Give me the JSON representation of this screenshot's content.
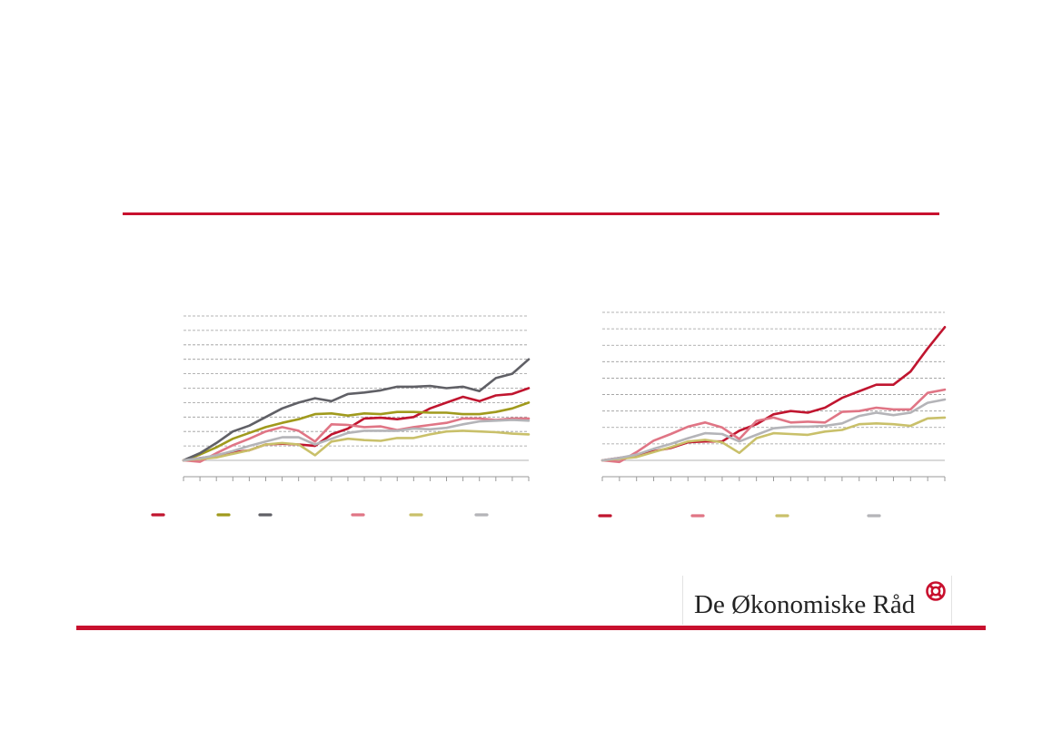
{
  "colors": {
    "accent": "#c8102e",
    "grid": "#9a9a9a",
    "axis": "#9a9a9a"
  },
  "logo": {
    "text": "De Økonomiske Råd",
    "icon": "cross-circle-icon"
  },
  "chart_data": [
    {
      "type": "line",
      "ylim": [
        0,
        10
      ],
      "grid": true,
      "gridlines": 10,
      "x_ticks": 22,
      "legend": "bottom",
      "x": [
        0,
        1,
        2,
        3,
        4,
        5,
        6,
        7,
        8,
        9,
        10,
        11,
        12,
        13,
        14,
        15,
        16,
        17,
        18,
        19,
        20,
        21
      ],
      "series": [
        {
          "color": "#c0152f",
          "values": [
            0.0,
            0.15,
            0.3,
            0.55,
            0.7,
            1.1,
            1.15,
            1.1,
            1.0,
            1.8,
            2.2,
            2.9,
            2.95,
            2.85,
            3.0,
            3.6,
            4.0,
            4.4,
            4.1,
            4.5,
            4.6,
            5.0
          ]
        },
        {
          "color": "#a09a1d",
          "values": [
            0.0,
            0.4,
            0.9,
            1.5,
            1.9,
            2.3,
            2.6,
            2.85,
            3.2,
            3.25,
            3.1,
            3.25,
            3.2,
            3.35,
            3.35,
            3.3,
            3.3,
            3.2,
            3.2,
            3.35,
            3.6,
            4.0
          ]
        },
        {
          "color": "#606066",
          "values": [
            0.0,
            0.5,
            1.2,
            2.0,
            2.4,
            3.0,
            3.6,
            4.0,
            4.3,
            4.1,
            4.6,
            4.7,
            4.85,
            5.1,
            5.1,
            5.15,
            5.0,
            5.1,
            4.8,
            5.7,
            6.0,
            7.0
          ]
        },
        {
          "color": "#e07585",
          "values": [
            0.0,
            -0.1,
            0.5,
            1.05,
            1.5,
            2.0,
            2.3,
            2.05,
            1.3,
            2.5,
            2.45,
            2.3,
            2.35,
            2.1,
            2.3,
            2.45,
            2.6,
            2.9,
            2.9,
            2.8,
            2.9,
            2.9
          ]
        },
        {
          "color": "#c9c06a",
          "values": [
            0.0,
            0.1,
            0.2,
            0.45,
            0.7,
            1.1,
            1.2,
            1.1,
            0.35,
            1.3,
            1.5,
            1.4,
            1.35,
            1.55,
            1.55,
            1.8,
            2.0,
            2.05,
            2.0,
            1.95,
            1.85,
            1.8
          ]
        },
        {
          "color": "#b4b4b8",
          "values": [
            0.0,
            0.15,
            0.35,
            0.65,
            1.0,
            1.3,
            1.6,
            1.6,
            1.1,
            1.5,
            1.9,
            2.05,
            2.05,
            2.05,
            2.2,
            2.15,
            2.25,
            2.5,
            2.7,
            2.75,
            2.8,
            2.75
          ]
        }
      ]
    },
    {
      "type": "line",
      "ylim": [
        0,
        9
      ],
      "grid": true,
      "gridlines": 9,
      "x_ticks": 21,
      "legend": "bottom",
      "x": [
        0,
        1,
        2,
        3,
        4,
        5,
        6,
        7,
        8,
        9,
        10,
        11,
        12,
        13,
        14,
        15,
        16,
        17,
        18,
        19,
        20
      ],
      "series": [
        {
          "color": "#c0152f",
          "values": [
            0.0,
            0.15,
            0.3,
            0.55,
            0.75,
            1.1,
            1.15,
            1.15,
            1.8,
            2.2,
            2.8,
            3.0,
            2.9,
            3.2,
            3.8,
            4.2,
            4.6,
            4.6,
            5.4,
            6.8,
            8.1
          ]
        },
        {
          "color": "#e07585",
          "values": [
            0.0,
            -0.1,
            0.5,
            1.2,
            1.6,
            2.05,
            2.3,
            2.0,
            1.3,
            2.4,
            2.6,
            2.3,
            2.35,
            2.3,
            2.95,
            3.0,
            3.2,
            3.1,
            3.1,
            4.1,
            4.3
          ]
        },
        {
          "color": "#c9c06a",
          "values": [
            0.0,
            0.1,
            0.2,
            0.5,
            0.8,
            1.15,
            1.25,
            1.1,
            0.45,
            1.35,
            1.65,
            1.6,
            1.55,
            1.75,
            1.85,
            2.2,
            2.25,
            2.2,
            2.1,
            2.55,
            2.6
          ]
        },
        {
          "color": "#b4b4b8",
          "values": [
            0.0,
            0.15,
            0.35,
            0.7,
            1.0,
            1.35,
            1.65,
            1.6,
            1.15,
            1.55,
            1.95,
            2.05,
            2.05,
            2.1,
            2.25,
            2.7,
            2.9,
            2.75,
            2.9,
            3.5,
            3.7
          ]
        }
      ]
    }
  ]
}
